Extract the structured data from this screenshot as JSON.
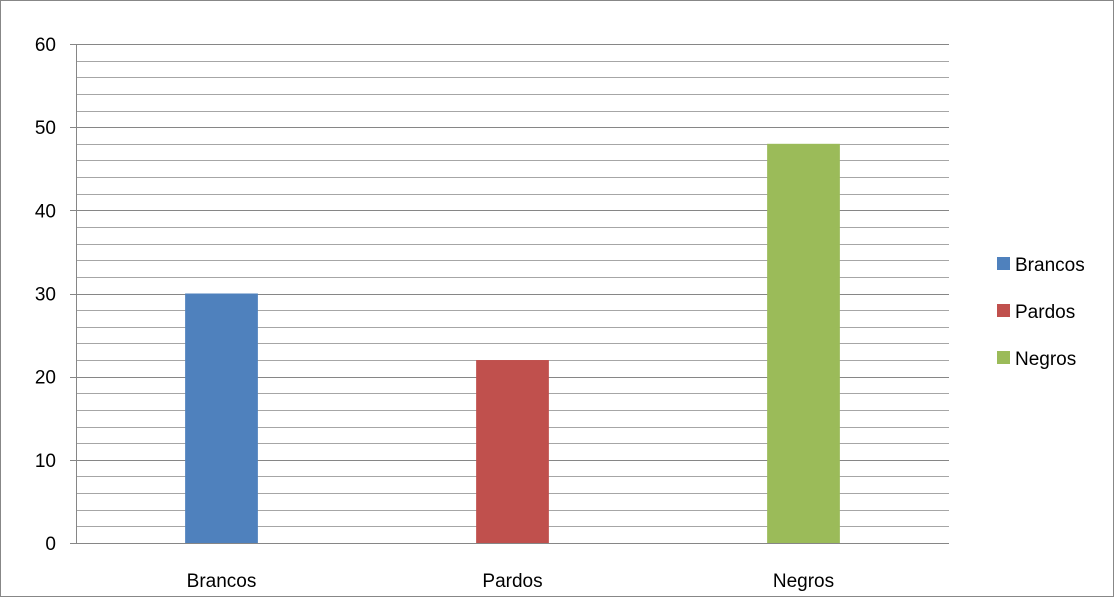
{
  "chart_data": {
    "type": "bar",
    "categories": [
      "Brancos",
      "Pardos",
      "Negros"
    ],
    "series": [
      {
        "name": "Brancos",
        "values": [
          30,
          null,
          null
        ],
        "color": "#4F81BD"
      },
      {
        "name": "Pardos",
        "values": [
          null,
          22,
          null
        ],
        "color": "#C0504D"
      },
      {
        "name": "Negros",
        "values": [
          null,
          null,
          48
        ],
        "color": "#9BBB59"
      }
    ],
    "ylim": [
      0,
      60
    ],
    "y_ticks": [
      "0",
      "10",
      "20",
      "30",
      "40",
      "50",
      "60"
    ],
    "title": "",
    "xlabel": "",
    "ylabel": "",
    "grid": true,
    "minor_grid_step": 2,
    "legend": {
      "position": "right",
      "items": [
        "Brancos",
        "Pardos",
        "Negros"
      ]
    }
  }
}
